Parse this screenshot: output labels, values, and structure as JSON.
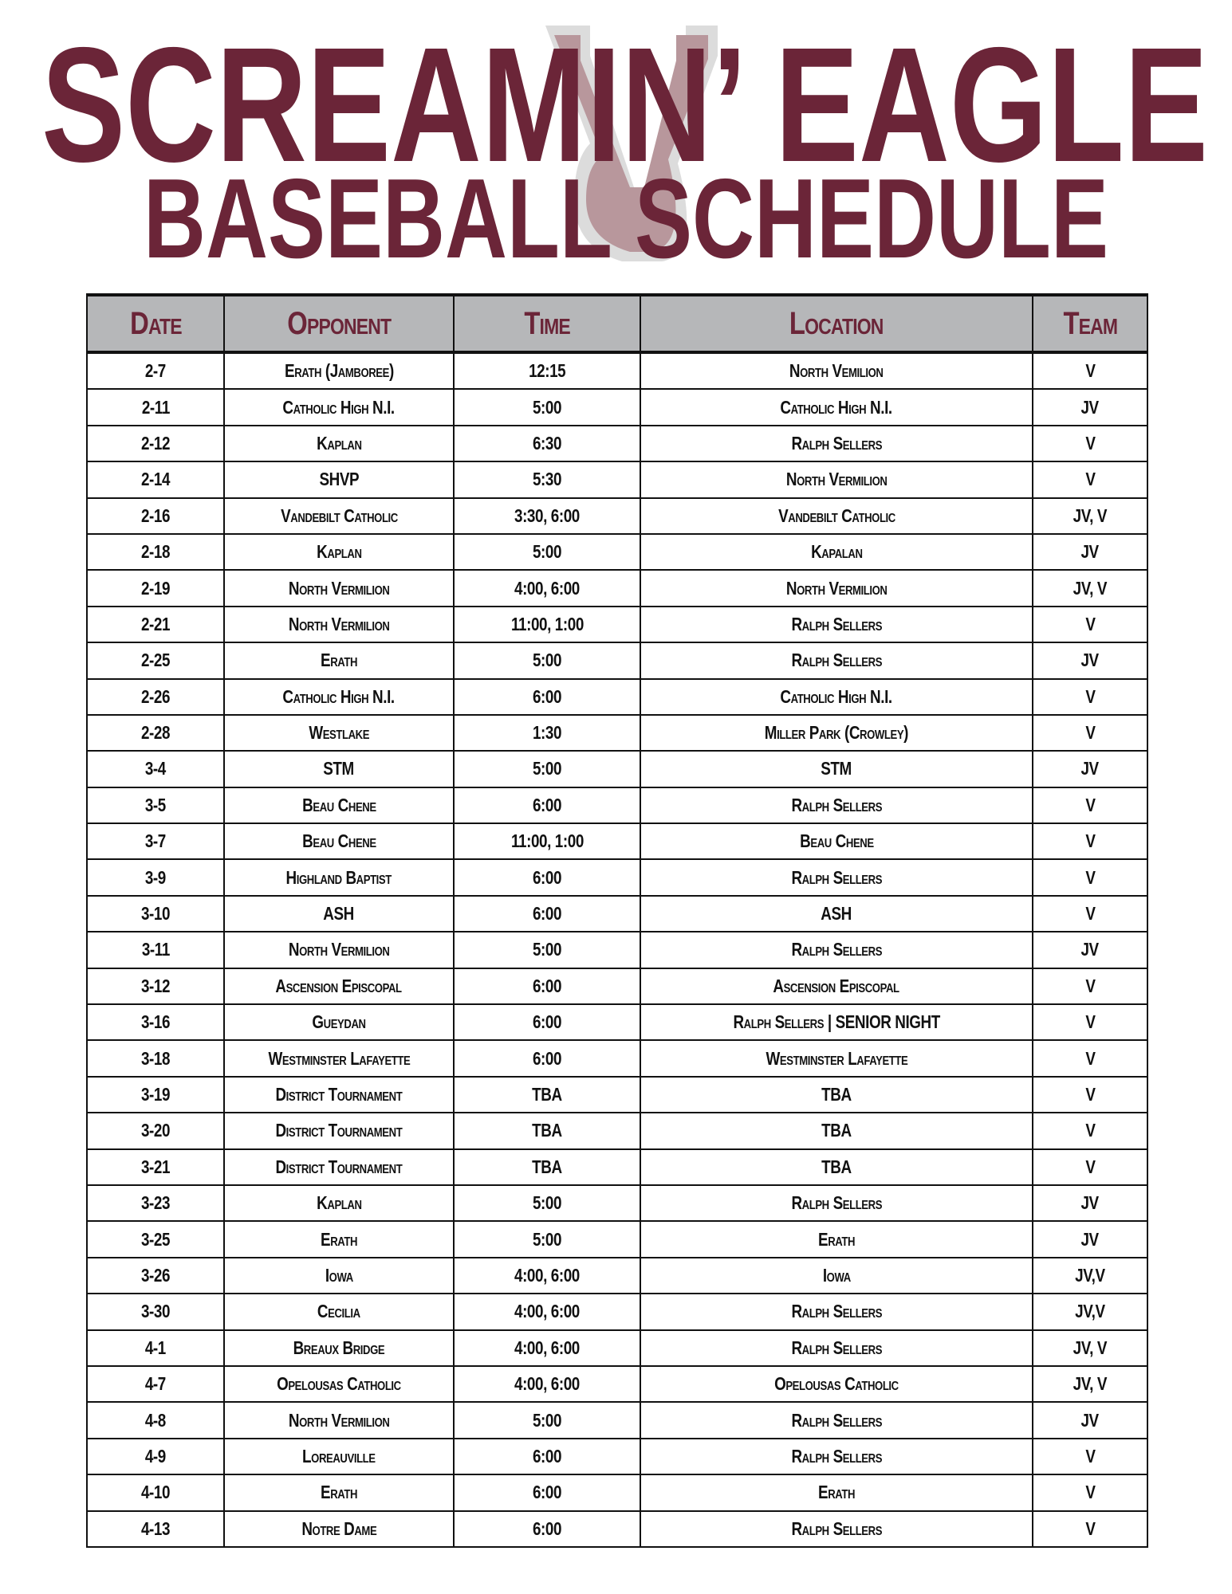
{
  "header": {
    "title_line1": "SCREAMIN’ EAGLE",
    "title_line2": "BASEBALL SCHEDULE",
    "logo": "VC monogram watermark",
    "brand_color": "#6b2538",
    "logo_color": "#b8979c"
  },
  "table": {
    "columns": [
      "Date",
      "Opponent",
      "Time",
      "Location",
      "Team"
    ],
    "rows": [
      [
        "2-7",
        "Erath (Jamboree)",
        "12:15",
        "North Vemilion",
        "V"
      ],
      [
        "2-11",
        "Catholic High N.I.",
        "5:00",
        "Catholic High N.I.",
        "JV"
      ],
      [
        "2-12",
        "Kaplan",
        "6:30",
        "Ralph Sellers",
        "V"
      ],
      [
        "2-14",
        "SHVP",
        "5:30",
        "North Vermilion",
        "V"
      ],
      [
        "2-16",
        "Vandebilt Catholic",
        "3:30, 6:00",
        "Vandebilt Catholic",
        "JV, V"
      ],
      [
        "2-18",
        "Kaplan",
        "5:00",
        "Kapalan",
        "JV"
      ],
      [
        "2-19",
        "North Vermilion",
        "4:00, 6:00",
        "North Vermilion",
        "JV, V"
      ],
      [
        "2-21",
        "North Vermilion",
        "11:00, 1:00",
        "Ralph Sellers",
        "V"
      ],
      [
        "2-25",
        "Erath",
        "5:00",
        "Ralph Sellers",
        "JV"
      ],
      [
        "2-26",
        "Catholic High N.I.",
        "6:00",
        "Catholic High N.I.",
        "V"
      ],
      [
        "2-28",
        "Westlake",
        "1:30",
        "Miller Park (Crowley)",
        "V"
      ],
      [
        "3-4",
        "STM",
        "5:00",
        "STM",
        "JV"
      ],
      [
        "3-5",
        "Beau Chene",
        "6:00",
        "Ralph Sellers",
        "V"
      ],
      [
        "3-7",
        "Beau Chene",
        "11:00, 1:00",
        "Beau Chene",
        "V"
      ],
      [
        "3-9",
        "Highland Baptist",
        "6:00",
        "Ralph Sellers",
        "V"
      ],
      [
        "3-10",
        "ASH",
        "6:00",
        "ASH",
        "V"
      ],
      [
        "3-11",
        "North Vermilion",
        "5:00",
        "Ralph Sellers",
        "JV"
      ],
      [
        "3-12",
        "Ascension Episcopal",
        "6:00",
        "Ascension Episcopal",
        "V"
      ],
      [
        "3-16",
        "Gueydan",
        "6:00",
        "Ralph Sellers | SENIOR NIGHT",
        "V"
      ],
      [
        "3-18",
        "Westminster Lafayette",
        "6:00",
        "Westminster Lafayette",
        "V"
      ],
      [
        "3-19",
        "District Tournament",
        "TBA",
        "TBA",
        "V"
      ],
      [
        "3-20",
        "District Tournament",
        "TBA",
        "TBA",
        "V"
      ],
      [
        "3-21",
        "District Tournament",
        "TBA",
        "TBA",
        "V"
      ],
      [
        "3-23",
        "Kaplan",
        "5:00",
        "Ralph Sellers",
        "JV"
      ],
      [
        "3-25",
        "Erath",
        "5:00",
        "Erath",
        "JV"
      ],
      [
        "3-26",
        "Iowa",
        "4:00, 6:00",
        "Iowa",
        "JV,V"
      ],
      [
        "3-30",
        "Cecilia",
        "4:00, 6:00",
        "Ralph Sellers",
        "JV,V"
      ],
      [
        "4-1",
        "Breaux Bridge",
        "4:00, 6:00",
        "Ralph Sellers",
        "JV, V"
      ],
      [
        "4-7",
        "Opelousas Catholic",
        "4:00, 6:00",
        "Opelousas Catholic",
        "JV, V"
      ],
      [
        "4-8",
        "North Vermilion",
        "5:00",
        "Ralph Sellers",
        "JV"
      ],
      [
        "4-9",
        "Loreauville",
        "6:00",
        "Ralph Sellers",
        "V"
      ],
      [
        "4-10",
        "Erath",
        "6:00",
        "Erath",
        "V"
      ],
      [
        "4-13",
        "Notre Dame",
        "6:00",
        "Ralph Sellers",
        "V"
      ]
    ]
  }
}
